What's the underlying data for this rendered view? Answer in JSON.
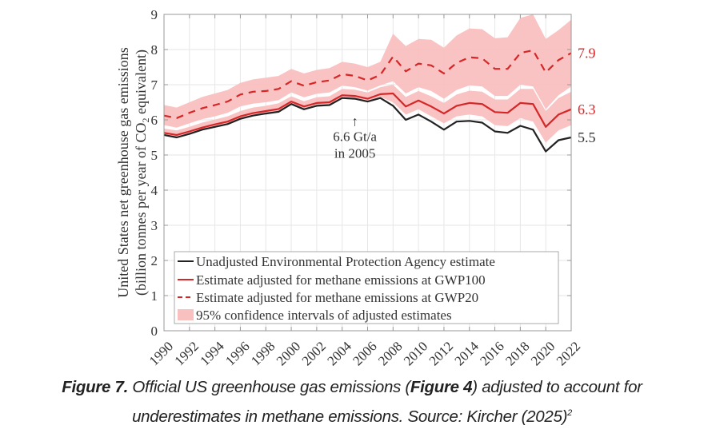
{
  "chart_data": {
    "type": "line",
    "title": "",
    "xlabel": "",
    "ylabel_line1": "United States net greenhouse gas emissions",
    "ylabel_line2_pre": "(billion tonnes per year of CO",
    "ylabel_line2_sub": "2",
    "ylabel_line2_post": " equivalent)",
    "xlim": [
      1990,
      2022
    ],
    "ylim": [
      0,
      9
    ],
    "grid": true,
    "legend_position": "lower-left",
    "x": [
      1990,
      1991,
      1992,
      1993,
      1994,
      1995,
      1996,
      1997,
      1998,
      1999,
      2000,
      2001,
      2002,
      2003,
      2004,
      2005,
      2006,
      2007,
      2008,
      2009,
      2010,
      2011,
      2012,
      2013,
      2014,
      2015,
      2016,
      2017,
      2018,
      2019,
      2020,
      2021,
      2022
    ],
    "xticks": [
      "1990",
      "1992",
      "1994",
      "1996",
      "1998",
      "2000",
      "2002",
      "2004",
      "2006",
      "2008",
      "2010",
      "2012",
      "2014",
      "2016",
      "2018",
      "2020",
      "2022"
    ],
    "yticks": [
      "0",
      "1",
      "2",
      "3",
      "4",
      "5",
      "6",
      "7",
      "8",
      "9"
    ],
    "series": [
      {
        "name": "Unadjusted Environmental Protection Agency estimate",
        "color": "#222222",
        "style": "solid",
        "values": [
          5.57,
          5.5,
          5.6,
          5.72,
          5.8,
          5.88,
          6.03,
          6.12,
          6.18,
          6.23,
          6.45,
          6.3,
          6.4,
          6.42,
          6.62,
          6.6,
          6.52,
          6.62,
          6.4,
          6.0,
          6.15,
          5.95,
          5.72,
          5.95,
          5.97,
          5.92,
          5.67,
          5.63,
          5.83,
          5.72,
          5.1,
          5.42,
          5.5
        ]
      },
      {
        "name": "Estimate adjusted for methane emissions at GWP100",
        "color": "#d62728",
        "style": "solid",
        "values": [
          5.63,
          5.57,
          5.67,
          5.78,
          5.87,
          5.95,
          6.1,
          6.19,
          6.25,
          6.31,
          6.52,
          6.38,
          6.48,
          6.5,
          6.7,
          6.68,
          6.6,
          6.73,
          6.75,
          6.38,
          6.55,
          6.38,
          6.18,
          6.4,
          6.48,
          6.45,
          6.22,
          6.2,
          6.48,
          6.45,
          5.8,
          6.15,
          6.3
        ]
      },
      {
        "name": "Estimate adjusted for methane emissions at GWP20",
        "color": "#d62728",
        "style": "dashed",
        "values": [
          6.12,
          6.05,
          6.2,
          6.33,
          6.42,
          6.52,
          6.72,
          6.8,
          6.82,
          6.88,
          7.1,
          6.97,
          7.07,
          7.12,
          7.3,
          7.25,
          7.12,
          7.28,
          7.8,
          7.38,
          7.6,
          7.55,
          7.32,
          7.62,
          7.78,
          7.75,
          7.45,
          7.45,
          7.9,
          7.98,
          7.35,
          7.7,
          7.9
        ]
      }
    ],
    "confidence_bands": {
      "name": "95% confidence intervals of adjusted estimates",
      "color": "#f9c0c0",
      "gwp100_lower": [
        5.58,
        5.52,
        5.62,
        5.73,
        5.82,
        5.9,
        6.05,
        6.14,
        6.2,
        6.26,
        6.47,
        6.33,
        6.43,
        6.45,
        6.64,
        6.62,
        6.55,
        6.65,
        6.5,
        6.15,
        6.3,
        6.1,
        5.9,
        6.1,
        6.15,
        6.1,
        5.85,
        5.82,
        6.05,
        5.95,
        5.35,
        5.7,
        5.85
      ],
      "gwp100_upper": [
        5.75,
        5.7,
        5.8,
        5.92,
        6.01,
        6.1,
        6.25,
        6.35,
        6.4,
        6.47,
        6.67,
        6.53,
        6.64,
        6.67,
        6.88,
        6.86,
        6.78,
        6.93,
        7.0,
        6.65,
        6.82,
        6.67,
        6.48,
        6.72,
        6.83,
        6.8,
        6.58,
        6.58,
        6.88,
        6.88,
        6.25,
        6.62,
        6.8
      ]
    },
    "gwp20_band": {
      "lower": [
        5.85,
        5.78,
        5.9,
        6.02,
        6.1,
        6.2,
        6.38,
        6.46,
        6.5,
        6.56,
        6.78,
        6.64,
        6.74,
        6.78,
        6.97,
        6.93,
        6.83,
        6.98,
        7.1,
        6.75,
        6.93,
        6.82,
        6.6,
        6.85,
        6.98,
        6.95,
        6.68,
        6.68,
        7.0,
        6.95,
        6.3,
        6.7,
        6.95
      ],
      "upper": [
        6.42,
        6.35,
        6.5,
        6.65,
        6.75,
        6.85,
        7.05,
        7.15,
        7.2,
        7.25,
        7.45,
        7.32,
        7.42,
        7.47,
        7.65,
        7.6,
        7.5,
        7.65,
        8.45,
        8.1,
        8.3,
        8.28,
        8.05,
        8.4,
        8.6,
        8.58,
        8.32,
        8.35,
        8.9,
        9.0,
        8.3,
        8.55,
        8.85
      ]
    },
    "annotation": {
      "line1": "6.6 Gt/a",
      "line2": "in 2005",
      "arrow": "↑",
      "x": 2005,
      "y": 6.6
    },
    "end_labels": [
      {
        "text": "7.9",
        "value": 7.9,
        "color": "#d62728"
      },
      {
        "text": "6.3",
        "value": 6.3,
        "color": "#d62728"
      },
      {
        "text": "5.5",
        "value": 5.5,
        "color": "#333333"
      }
    ]
  },
  "caption": {
    "figure_label": "Figure 7.",
    "text_part1": " Official US greenhouse gas emissions (",
    "figure_ref": "Figure 4",
    "text_part2": ") adjusted to account for",
    "text_line2": "underestimates in methane emissions. Source: Kircher (2025)",
    "footnote": "2"
  }
}
